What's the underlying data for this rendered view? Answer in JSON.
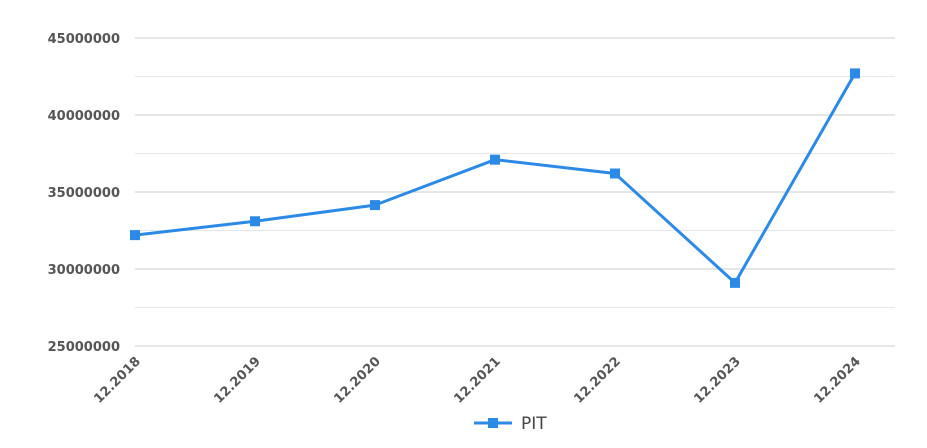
{
  "chart_data": {
    "type": "line",
    "title": "",
    "xlabel": "",
    "ylabel": "",
    "categories": [
      "12.2018",
      "12.2019",
      "12.2020",
      "12.2021",
      "12.2022",
      "12.2023",
      "12.2024"
    ],
    "y_ticks": [
      "25000000",
      "30000000",
      "35000000",
      "40000000",
      "45000000"
    ],
    "ylim": [
      25000000,
      45000000
    ],
    "grid": true,
    "legend_position": "bottom",
    "series": [
      {
        "name": "PIT",
        "color": "#2b8ae6",
        "marker": "square",
        "values": [
          32200000,
          33100000,
          34150000,
          37100000,
          36200000,
          29100000,
          42700000
        ]
      }
    ]
  }
}
